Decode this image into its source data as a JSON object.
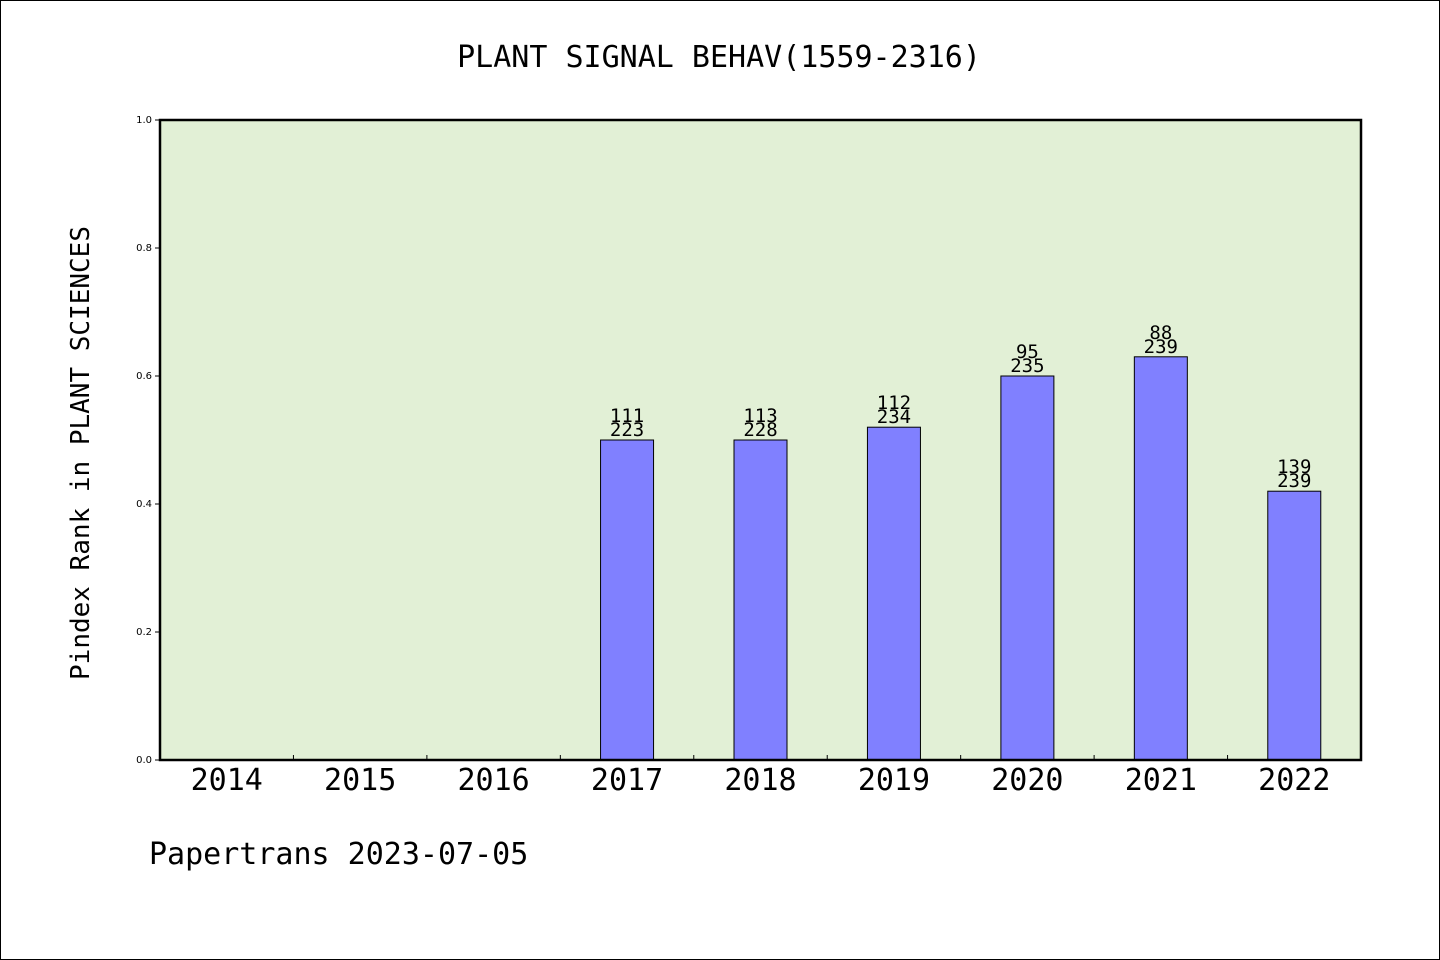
{
  "chart_data": {
    "type": "bar",
    "title": "PLANT SIGNAL BEHAV(1559-2316)",
    "ylabel": "Pindex Rank in PLANT SCIENCES",
    "xlabel": "",
    "ylim": [
      0,
      1.0
    ],
    "yticks": [
      "0.0",
      "0.2",
      "0.4",
      "0.6",
      "0.8",
      "1.0"
    ],
    "ytick_values": [
      0,
      0.2,
      0.4,
      0.6,
      0.8,
      1.0
    ],
    "grid": false,
    "categories": [
      "2014",
      "2015",
      "2016",
      "2017",
      "2018",
      "2019",
      "2020",
      "2021",
      "2022"
    ],
    "values": [
      null,
      null,
      null,
      0.5,
      0.5,
      0.52,
      0.6,
      0.63,
      0.42
    ],
    "rank_labels": [
      "",
      "",
      "",
      "111",
      "113",
      "112",
      "95",
      "88",
      "139"
    ],
    "total_labels": [
      "",
      "",
      "",
      "223",
      "228",
      "234",
      "235",
      "239",
      "239"
    ],
    "colors": {
      "plot_background": "#e2f0d6",
      "bar_fill": "#8080ff",
      "bar_stroke": "#000000"
    }
  },
  "footer": {
    "credit": "Papertrans 2023-07-05"
  }
}
